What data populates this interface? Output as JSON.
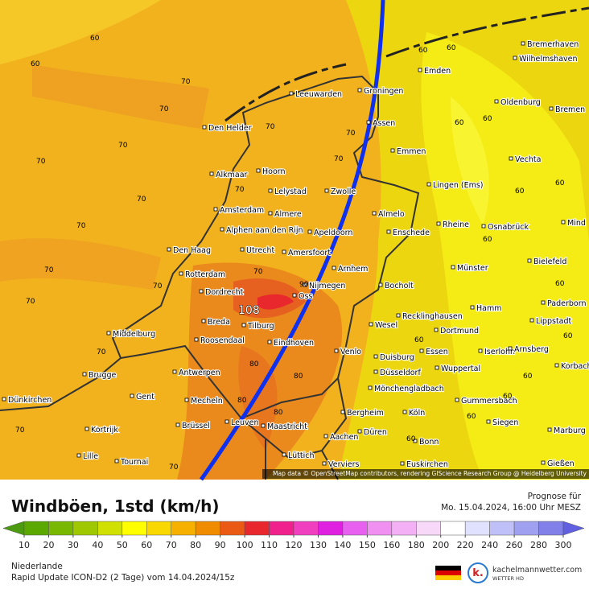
{
  "header": {
    "title": "Windböen, 1std (km/h)",
    "forecast_label": "Prognose für",
    "forecast_time": "Mo. 15.04.2024, 16:00 Uhr MESZ"
  },
  "colorbar": {
    "ticks": [
      10,
      20,
      30,
      40,
      50,
      60,
      70,
      80,
      90,
      100,
      110,
      120,
      130,
      140,
      150,
      160,
      180,
      200,
      220,
      240,
      260,
      280,
      300
    ],
    "colors": [
      "#4c9a10",
      "#5aa800",
      "#78b800",
      "#a0c800",
      "#d0e000",
      "#ffff00",
      "#f8d800",
      "#f5b000",
      "#f08c00",
      "#eb5a14",
      "#e8282c",
      "#f0208c",
      "#f040c0",
      "#e020e0",
      "#e860f0",
      "#f090f0",
      "#f4b0f4",
      "#f8d8f8",
      "#ffffff",
      "#e0e0ff",
      "#c0c0f8",
      "#a0a0f0",
      "#8080e8",
      "#6060e0"
    ]
  },
  "map": {
    "attribution": "Map data © OpenStreetMap contributors, rendering GIScience Research Group @ Heidelberg University",
    "max_label": 108,
    "cities": [
      "Bremerhaven",
      "Wilhelmshaven",
      "Emden",
      "Leeuwarden",
      "Groningen",
      "Oldenburg",
      "Bremen",
      "Assen",
      "Den Helder",
      "Emmen",
      "Vechta",
      "Alkmaar",
      "Hoorn",
      "Lingen (Ems)",
      "Lelystad",
      "Zwolle",
      "Amsterdam",
      "Almere",
      "Almelo",
      "Mind",
      "Rheine",
      "Osnabrück",
      "Enschede",
      "Alphen aan den Rijn",
      "Apeldoorn",
      "Den Haag",
      "Utrecht",
      "Amersfoort",
      "Bielefeld",
      "Arnhem",
      "Münster",
      "Rotterdam",
      "Nijmegen",
      "Bocholt",
      "Dordrecht",
      "Oss",
      "Paderborn",
      "Hamm",
      "Recklinghausen",
      "Breda",
      "Tilburg",
      "Wesel",
      "Lippstadt",
      "Dortmund",
      "Middelburg",
      "Roosendaal",
      "Eindhoven",
      "Venlo",
      "Essen",
      "Iserlohn",
      "Arnsberg",
      "Duisburg",
      "Wuppertal",
      "Korbach",
      "Antwerpen",
      "Düsseldorf",
      "Brugge",
      "Mönchengladbach",
      "Gent",
      "Dünkirchen",
      "Mecheln",
      "Gummersbach",
      "Siegen",
      "Bergheim",
      "Köln",
      "Brüssel",
      "Leuven",
      "Maastricht",
      "Kortrijk",
      "Aachen",
      "Düren",
      "Marburg",
      "Bonn",
      "Lille",
      "Tournai",
      "Lüttich",
      "Verviers",
      "Euskirchen",
      "Gießen"
    ],
    "contour_labels": [
      60,
      60,
      70,
      70,
      70,
      70,
      70,
      70,
      70,
      70,
      70,
      70,
      70,
      70,
      70,
      60,
      60,
      60,
      60,
      60,
      60,
      60,
      60,
      60,
      70,
      70,
      80,
      80,
      80,
      90,
      60,
      60,
      70,
      70,
      80,
      60,
      60,
      60
    ]
  },
  "footer": {
    "region": "Niederlande",
    "model": "Rapid Update ICON-D2 (2 Tage) vom 14.04.2024/15z",
    "brand": "kachelmannwetter.com",
    "brand_sub": "WETTER HD"
  }
}
